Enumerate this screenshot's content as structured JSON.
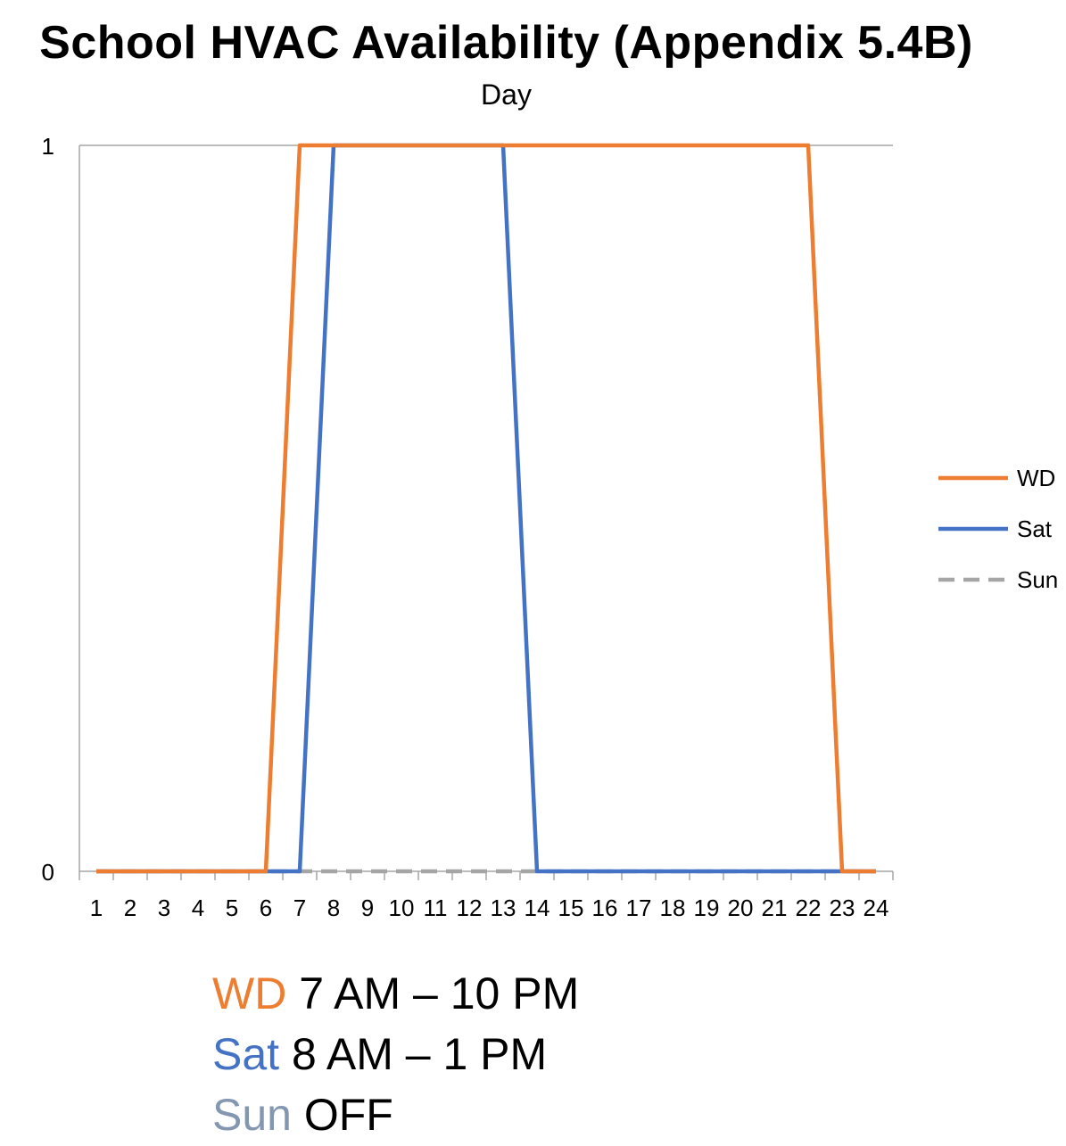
{
  "chart_data": {
    "type": "line",
    "title": "School HVAC Availability (Appendix 5.4B)",
    "subtitle": "Day",
    "xlabel": "",
    "ylabel": "",
    "x": [
      1,
      2,
      3,
      4,
      5,
      6,
      7,
      8,
      9,
      10,
      11,
      12,
      13,
      14,
      15,
      16,
      17,
      18,
      19,
      20,
      21,
      22,
      23,
      24
    ],
    "ylim": [
      0,
      1
    ],
    "yticks": [
      0,
      1
    ],
    "grid": "horizontal",
    "legend_position": "right",
    "series": [
      {
        "name": "WD",
        "color": "#ED7D31",
        "dash": "solid",
        "values": [
          0,
          0,
          0,
          0,
          0,
          0,
          1,
          1,
          1,
          1,
          1,
          1,
          1,
          1,
          1,
          1,
          1,
          1,
          1,
          1,
          1,
          1,
          0,
          0
        ]
      },
      {
        "name": "Sat",
        "color": "#4472C4",
        "dash": "solid",
        "values": [
          0,
          0,
          0,
          0,
          0,
          0,
          0,
          1,
          1,
          1,
          1,
          1,
          1,
          0,
          0,
          0,
          0,
          0,
          0,
          0,
          0,
          0,
          0,
          0
        ]
      },
      {
        "name": "Sun",
        "color": "#A5A5A5",
        "dash": "dashed",
        "values": [
          0,
          0,
          0,
          0,
          0,
          0,
          0,
          0,
          0,
          0,
          0,
          0,
          0,
          0,
          0,
          0,
          0,
          0,
          0,
          0,
          0,
          0,
          0,
          0
        ]
      }
    ]
  },
  "summary": [
    {
      "label": "WD",
      "label_color": "#ED7D31",
      "text": " 7 AM – 10 PM"
    },
    {
      "label": "Sat",
      "label_color": "#4472C4",
      "text": " 8 AM – 1 PM"
    },
    {
      "label": "Sun",
      "label_color": "#8497B0",
      "text": " OFF"
    }
  ]
}
